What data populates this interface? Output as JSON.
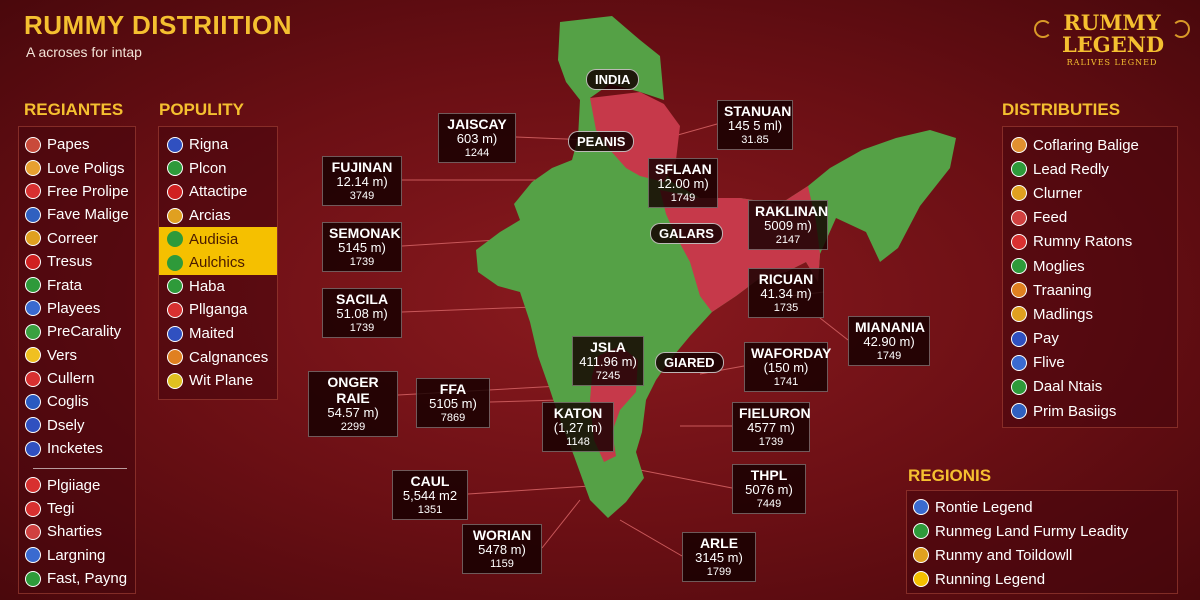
{
  "header": {
    "title": "RUMMY DISTRIITION",
    "subtitle": "A acroses for intap",
    "brand_name": "RUMMY LEGEND",
    "brand_tagline": "RALIVES LEGNED"
  },
  "regiantes": {
    "heading": "REGIANTES",
    "items": [
      {
        "label": "Papes",
        "icon": "globe-icon",
        "color": "#c94a3a"
      },
      {
        "label": "Love Poligs",
        "icon": "flag-icon",
        "color": "#e8a030"
      },
      {
        "label": "Free Prolipe",
        "icon": "flag-icon",
        "color": "#d83030"
      },
      {
        "label": "Fave Malige",
        "icon": "flag-icon",
        "color": "#3060c0"
      },
      {
        "label": "Correer",
        "icon": "globe-icon",
        "color": "#e0a020"
      },
      {
        "label": "Tresus",
        "icon": "circle-icon",
        "color": "#d02020"
      },
      {
        "label": "Frata",
        "icon": "flag-icon",
        "color": "#2e9a3a"
      },
      {
        "label": "Playees",
        "icon": "globe-icon",
        "color": "#3a6ad0"
      },
      {
        "label": "PreCarality",
        "icon": "flag-icon",
        "color": "#3aa040"
      },
      {
        "label": "Vers",
        "icon": "leaf-icon",
        "color": "#f0c020"
      },
      {
        "label": "Cullern",
        "icon": "flag-icon",
        "color": "#d83030"
      },
      {
        "label": "Coglis",
        "icon": "globe-icon",
        "color": "#2a5ac0"
      },
      {
        "label": "Dsely",
        "icon": "flag-icon",
        "color": "#3050c0"
      },
      {
        "label": "Incketes",
        "icon": "flag-icon",
        "color": "#3050c0"
      },
      {
        "label": "Plgiiage",
        "icon": "flag-icon",
        "color": "#d83030"
      },
      {
        "label": "Tegi",
        "icon": "flag-icon",
        "color": "#d83030"
      },
      {
        "label": "Sharties",
        "icon": "flag-icon",
        "color": "#d04040"
      },
      {
        "label": "Largning",
        "icon": "globe-icon",
        "color": "#3a6ad0"
      },
      {
        "label": "Fast, Payng",
        "icon": "globe-icon",
        "color": "#2e9a3a"
      }
    ]
  },
  "populity": {
    "heading": "POPULITY",
    "items": [
      {
        "label": "Rigna",
        "icon": "flag-icon",
        "color": "#3050c0",
        "highlight": false
      },
      {
        "label": "Plcon",
        "icon": "leaf-icon",
        "color": "#2e9a3a",
        "highlight": false
      },
      {
        "label": "Attactipe",
        "icon": "cross-icon",
        "color": "#d02020",
        "highlight": false
      },
      {
        "label": "Arcias",
        "icon": "flag-icon",
        "color": "#e0a020",
        "highlight": false
      },
      {
        "label": "Audisia",
        "icon": "circle-icon",
        "color": "#2e9a3a",
        "highlight": true
      },
      {
        "label": "Aulchics",
        "icon": "circle-icon",
        "color": "#2e9a3a",
        "highlight": true
      },
      {
        "label": "Haba",
        "icon": "leaf-icon",
        "color": "#2e9a3a",
        "highlight": false
      },
      {
        "label": "Pllganga",
        "icon": "flag-icon",
        "color": "#d83030",
        "highlight": false
      },
      {
        "label": "Maited",
        "icon": "flag-icon",
        "color": "#3050c0",
        "highlight": false
      },
      {
        "label": "Calgnances",
        "icon": "globe-icon",
        "color": "#e08020",
        "highlight": false
      },
      {
        "label": "Wit Plane",
        "icon": "leaf-icon",
        "color": "#e0c020",
        "highlight": false
      }
    ]
  },
  "distributies": {
    "heading": "DISTRIBUTIES",
    "items": [
      {
        "label": "Coflaring Balige",
        "icon": "flag-icon",
        "color": "#e09030"
      },
      {
        "label": "Lead Redly",
        "icon": "flag-icon",
        "color": "#2e9a3a"
      },
      {
        "label": "Clurner",
        "icon": "globe-icon",
        "color": "#e0a020"
      },
      {
        "label": "Feed",
        "icon": "globe-icon",
        "color": "#d04040"
      },
      {
        "label": "Rumny Ratons",
        "icon": "flag-icon",
        "color": "#d83030"
      },
      {
        "label": "Moglies",
        "icon": "flag-icon",
        "color": "#2e9a3a"
      },
      {
        "label": "Traaning",
        "icon": "flag-icon",
        "color": "#e08020"
      },
      {
        "label": "Madlings",
        "icon": "flag-icon",
        "color": "#e0a020"
      },
      {
        "label": "Pay",
        "icon": "flag-icon",
        "color": "#3050c0"
      },
      {
        "label": "Flive",
        "icon": "globe-icon",
        "color": "#3a6ad0"
      },
      {
        "label": "Daal Ntais",
        "icon": "globe-icon",
        "color": "#2e9a3a"
      },
      {
        "label": "Prim Basiigs",
        "icon": "f-icon",
        "color": "#3060c0"
      }
    ]
  },
  "regionis": {
    "heading": "REGIONIS",
    "items": [
      {
        "label": "Rontie Legend",
        "icon": "globe-icon",
        "color": "#3a6ad0"
      },
      {
        "label": "Runmeg Land Furmy Leadity",
        "icon": "globe-icon",
        "color": "#2e9a3a"
      },
      {
        "label": "Runmy and Toildowll",
        "icon": "globe-icon",
        "color": "#e0a020"
      },
      {
        "label": "Running Legend",
        "icon": "circle-icon",
        "color": "#f5c000"
      }
    ]
  },
  "map": {
    "colors": {
      "green": "#55a146",
      "red": "#c6394a",
      "background": "#6a0f14"
    },
    "region_tags": [
      "INDIA",
      "PEANIS",
      "GALARS",
      "GIARED"
    ],
    "labels": [
      {
        "name": "JAISCAY",
        "value": "603 m)",
        "code": "1244"
      },
      {
        "name": "STANUAN",
        "value": "145 5 ml)",
        "code": "31.85"
      },
      {
        "name": "FUJINAN",
        "value": "12.14 m)",
        "code": "3749"
      },
      {
        "name": "SFLAAN",
        "value": "12.00 m)",
        "code": "1749"
      },
      {
        "name": "RAKLINAN",
        "value": "5009 m)",
        "code": "2147"
      },
      {
        "name": "SEMONAK",
        "value": "5145 m)",
        "code": "1739"
      },
      {
        "name": "RICUAN",
        "value": "41.34 m)",
        "code": "1735"
      },
      {
        "name": "SACILA",
        "value": "51.08 m)",
        "code": "1739"
      },
      {
        "name": "MIANANIA",
        "value": "42.90 m)",
        "code": "1749"
      },
      {
        "name": "JSLA",
        "value": "411.96 m)",
        "code": "7245"
      },
      {
        "name": "WAFORDAY",
        "value": "(150 m)",
        "code": "1741"
      },
      {
        "name": "ONGER RAIE",
        "value": "54.57 m)",
        "code": "2299"
      },
      {
        "name": "FFA",
        "value": "5105 m)",
        "code": "7869"
      },
      {
        "name": "KATON",
        "value": "(1,27 m)",
        "code": "1148"
      },
      {
        "name": "FIELURON",
        "value": "4577 m)",
        "code": "1739"
      },
      {
        "name": "CAUL",
        "value": "5,544 m2",
        "code": "1351"
      },
      {
        "name": "THPL",
        "value": "5076 m)",
        "code": "7449"
      },
      {
        "name": "WORIAN",
        "value": "5478 m)",
        "code": "1159"
      },
      {
        "name": "ARLE",
        "value": "3145 m)",
        "code": "1799"
      }
    ]
  }
}
